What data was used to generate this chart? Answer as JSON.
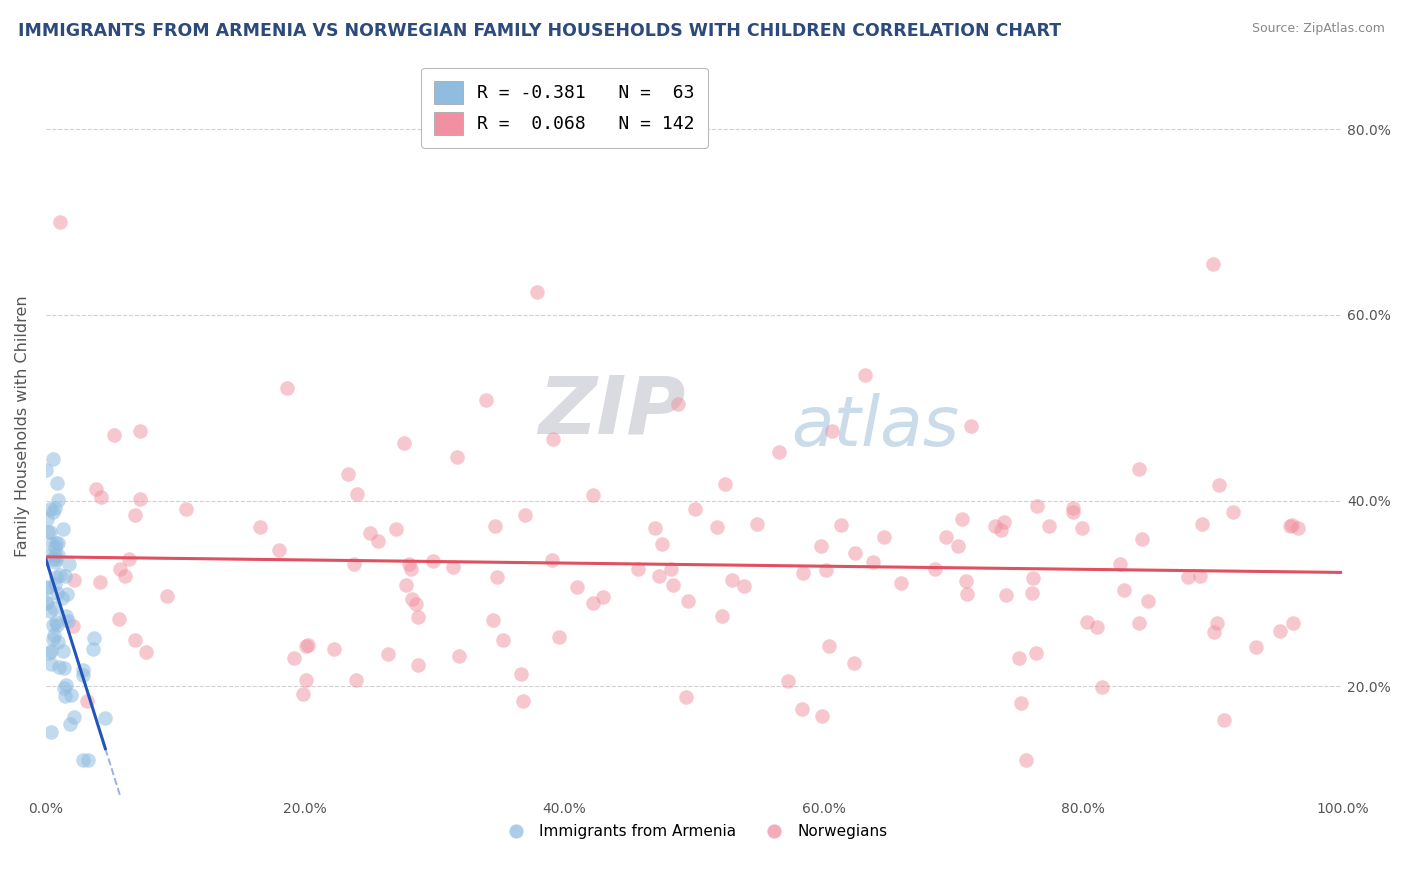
{
  "title": "IMMIGRANTS FROM ARMENIA VS NORWEGIAN FAMILY HOUSEHOLDS WITH CHILDREN CORRELATION CHART",
  "source": "Source: ZipAtlas.com",
  "ylabel": "Family Households with Children",
  "ylabel_right_ticks": [
    "20.0%",
    "40.0%",
    "60.0%",
    "80.0%"
  ],
  "ylabel_right_vals": [
    0.2,
    0.4,
    0.6,
    0.8
  ],
  "legend_items_labels": [
    "R = -0.381   N =  63",
    "R =  0.068   N = 142"
  ],
  "legend_label_bottom": [
    "Immigrants from Armenia",
    "Norwegians"
  ],
  "armenia_R": -0.381,
  "armenia_N": 63,
  "norwegian_R": 0.068,
  "norwegian_N": 142,
  "scatter_armenia_color": "#90bce0",
  "scatter_norwegian_color": "#f090a0",
  "line_armenia_color": "#2255bb",
  "line_norwegian_color": "#e05060",
  "background_color": "#ffffff",
  "grid_color": "#cccccc",
  "title_color": "#2c4a7c",
  "axis_label_color": "#555555",
  "source_color": "#888888",
  "watermark_zip_color": "#c8ccd8",
  "watermark_atlas_color": "#a8c0d8",
  "xlim": [
    0.0,
    1.0
  ],
  "ylim": [
    0.08,
    0.88
  ],
  "armenia_seed": 7,
  "norwegian_seed": 55
}
